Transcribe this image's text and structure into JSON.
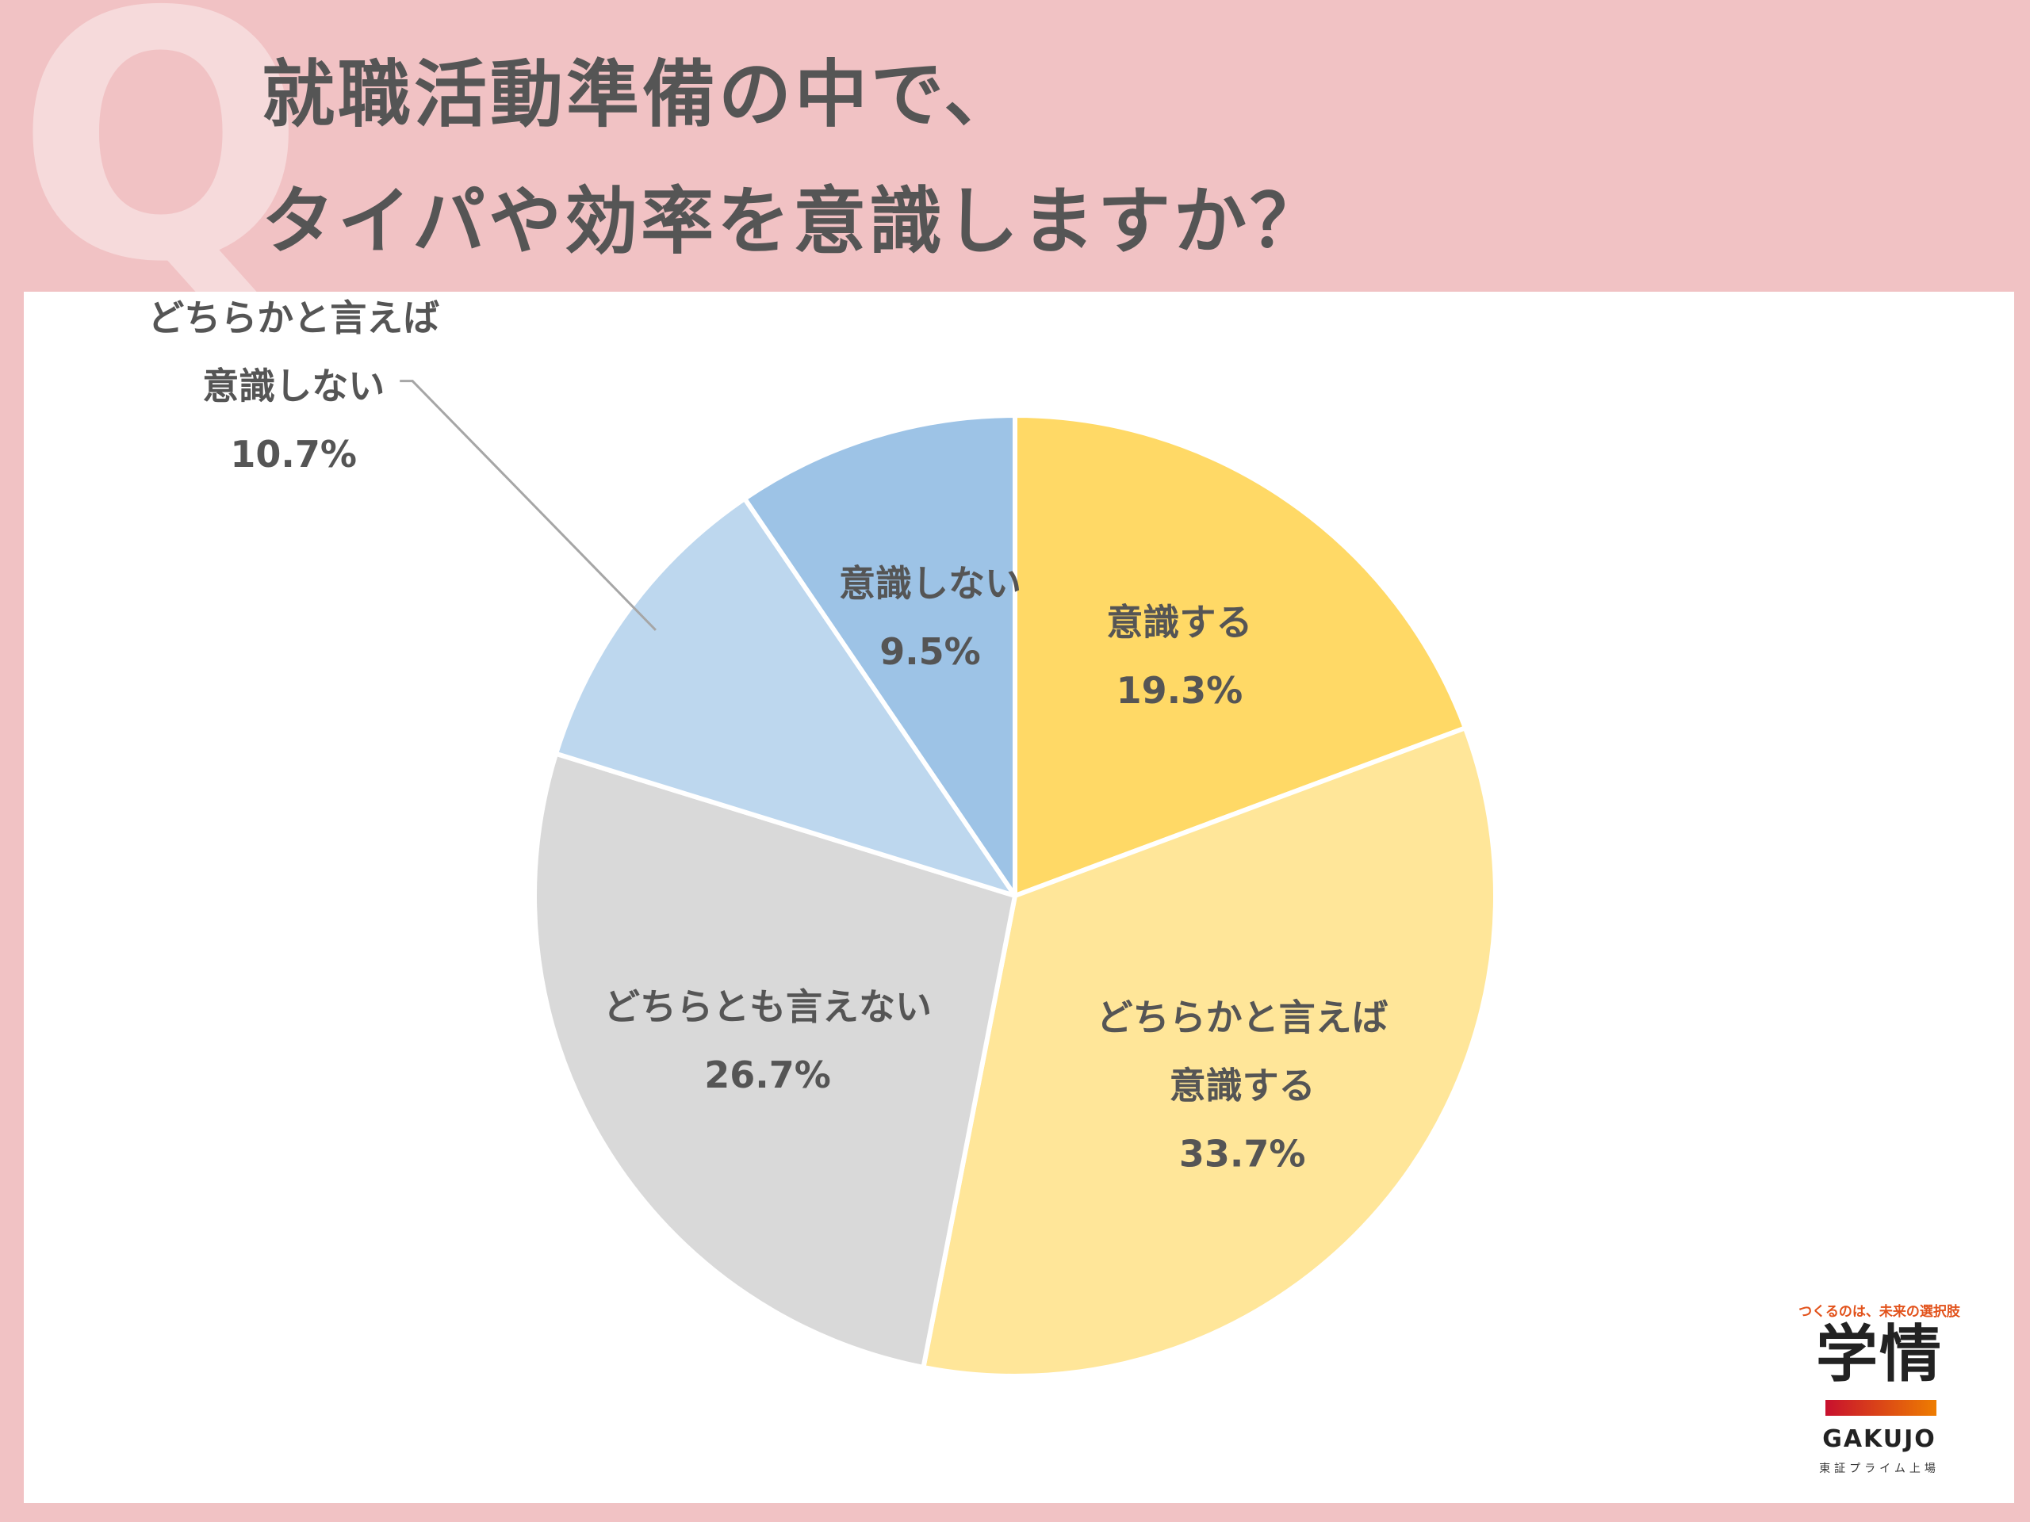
{
  "header": {
    "q_mark": "Q",
    "question_line1": "就職活動準備の中で、",
    "question_line2": "タイパや効率を意識しますか？"
  },
  "chart_data": {
    "type": "pie",
    "start": "12 o'clock, clockwise",
    "slices": [
      {
        "label_lines": [
          "意識する"
        ],
        "value": 19.3,
        "value_text": "19.3%",
        "color": "#ffd966"
      },
      {
        "label_lines": [
          "どちらかと言えば",
          "意識する"
        ],
        "value": 33.7,
        "value_text": "33.7%",
        "color": "#ffe699"
      },
      {
        "label_lines": [
          "どちらとも言えない"
        ],
        "value": 26.7,
        "value_text": "26.7%",
        "color": "#d9d9d9"
      },
      {
        "label_lines": [
          "どちらかと言えば",
          "意識しない"
        ],
        "value": 10.7,
        "value_text": "10.7%",
        "color": "#bdd7ee",
        "label_outside": true
      },
      {
        "label_lines": [
          "意識しない"
        ],
        "value": 9.5,
        "value_text": "9.5%",
        "color": "#9dc3e6"
      }
    ]
  },
  "logo": {
    "tagline": "つくるのは、未来の選択肢",
    "mark": "学情",
    "name": "GAKUJO",
    "listing": "東証プライム上場"
  }
}
